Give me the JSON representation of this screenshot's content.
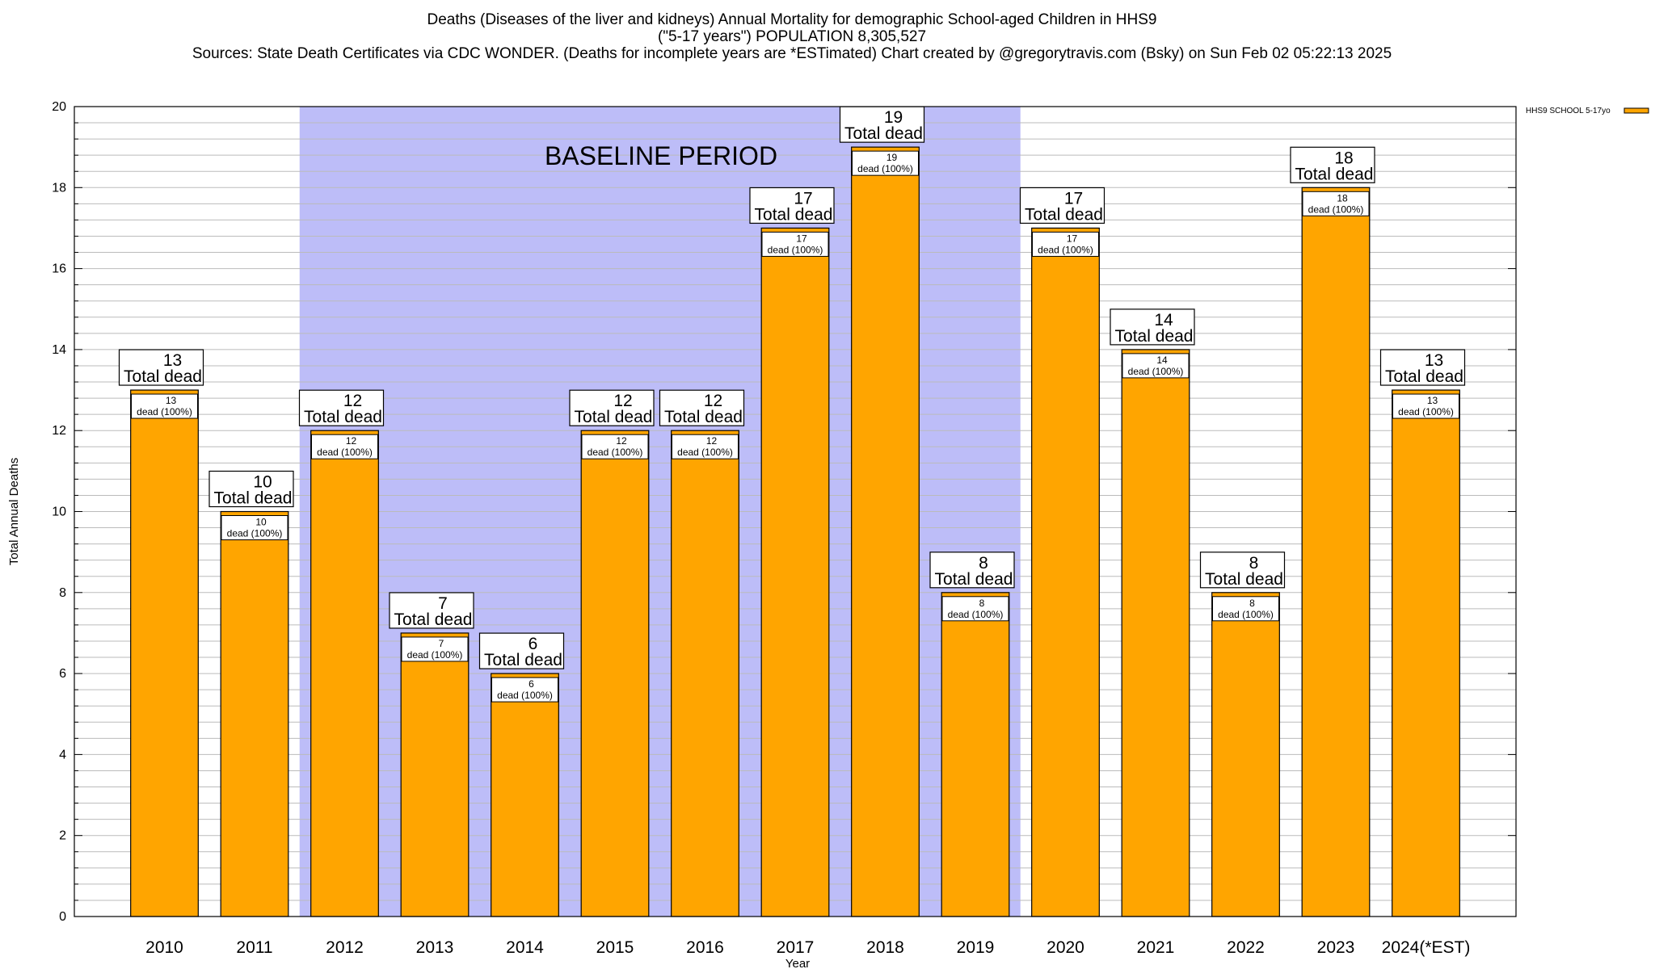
{
  "header": {
    "title_line1": "Deaths (Diseases of the liver and kidneys) Annual Mortality for demographic School-aged Children in HHS9",
    "title_line2": "(\"5-17 years\") POPULATION 8,305,527",
    "title_line3": "Sources: State Death Certificates via CDC WONDER. (Deaths for incomplete years are *ESTimated)                Chart created by @gregorytravis.com (Bsky) on Sun Feb 02 05:22:13 2025"
  },
  "colors": {
    "bar": "#FFA500",
    "baseline_band": "#BDBDF8",
    "grid": "#bbbbbb"
  },
  "chart_data": {
    "type": "bar",
    "title": "Deaths (Diseases of the liver and kidneys) Annual Mortality for demographic School-aged Children in HHS9",
    "xlabel": "Year",
    "ylabel": "Total Annual Deaths",
    "ylim": [
      0,
      20
    ],
    "yticks": [
      0,
      2,
      4,
      6,
      8,
      10,
      12,
      14,
      16,
      18,
      20
    ],
    "grid": true,
    "legend_position": "top-right",
    "categories": [
      "2010",
      "2011",
      "2012",
      "2013",
      "2014",
      "2015",
      "2016",
      "2017",
      "2018",
      "2019",
      "2020",
      "2021",
      "2022",
      "2023",
      "2024(*EST)"
    ],
    "series": [
      {
        "name": "HHS9 SCHOOL 5-17yo",
        "values": [
          13,
          10,
          12,
          7,
          6,
          12,
          12,
          17,
          19,
          8,
          17,
          14,
          8,
          18,
          13
        ]
      }
    ],
    "annotation_total_text": "Total dead",
    "annotation_percent_text": "dead (100%)",
    "baseline_period": {
      "label": "BASELINE PERIOD",
      "start_category": "2012",
      "end_category": "2019"
    }
  }
}
